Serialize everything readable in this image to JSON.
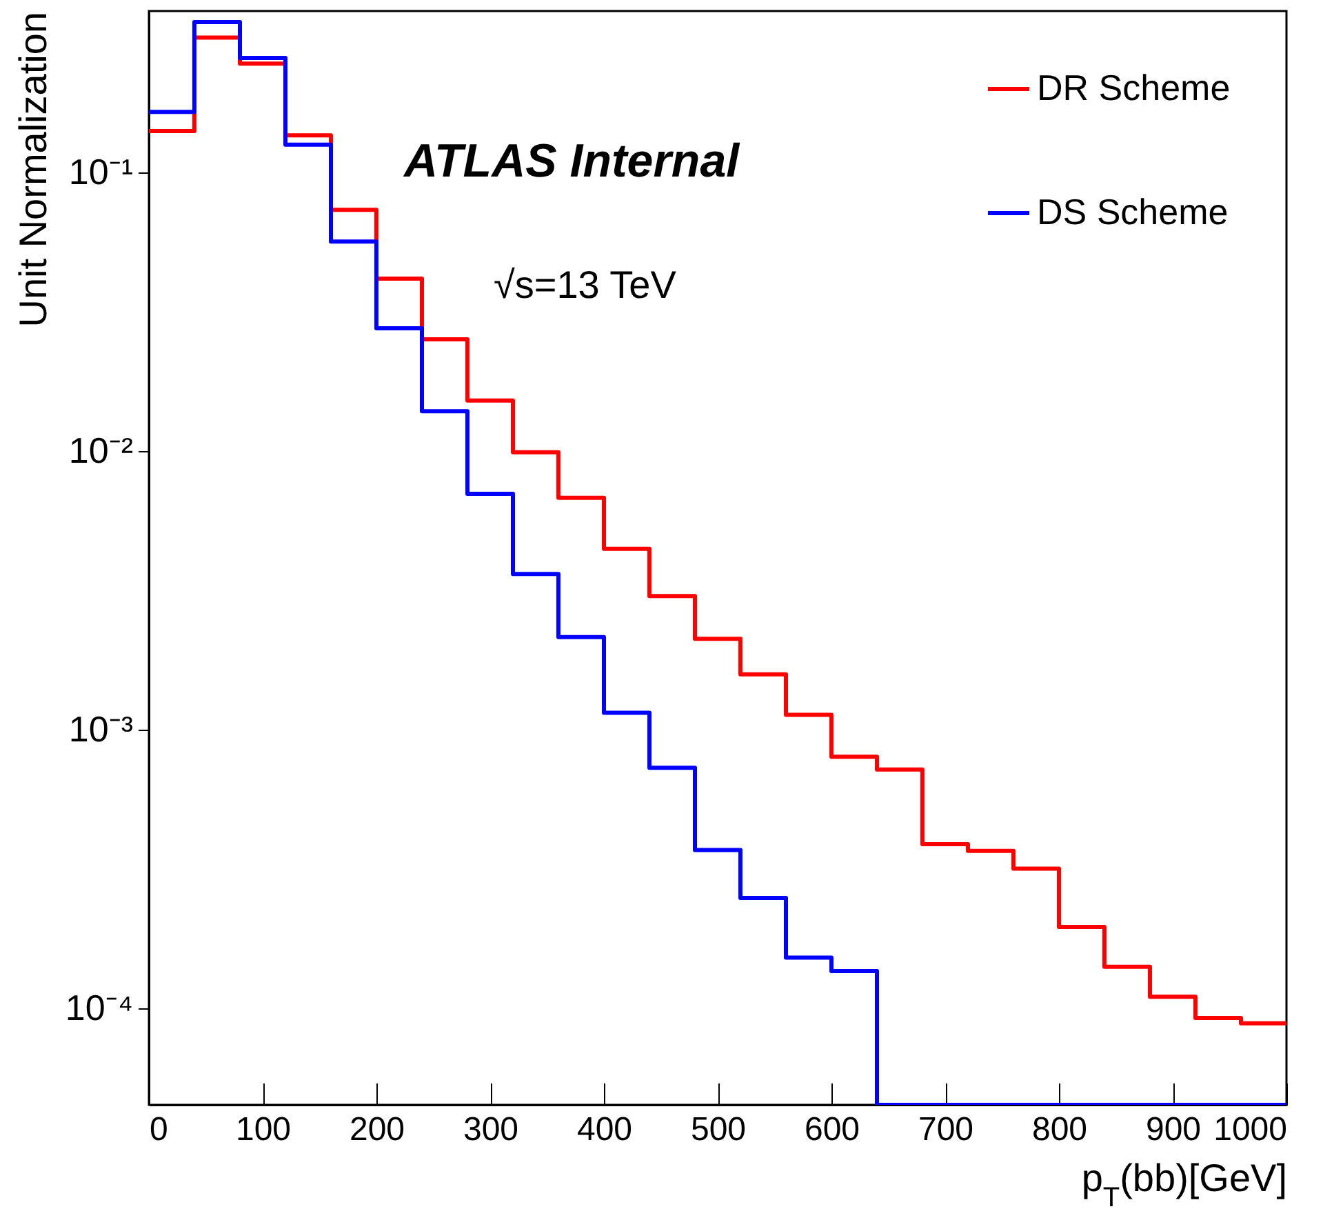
{
  "chart_data": {
    "type": "histogram",
    "xlabel": "p$_{T}$(bb)[GeV]",
    "ylabel": "Unit Normalization",
    "bins": [
      0,
      40,
      80,
      120,
      160,
      200,
      240,
      280,
      320,
      360,
      400,
      440,
      480,
      520,
      560,
      600,
      640,
      680,
      720,
      760,
      800,
      840,
      880,
      920,
      960,
      1000
    ],
    "series": [
      {
        "name": "DR Scheme",
        "color": "#ff0000",
        "values": [
          0.141,
          0.305,
          0.246,
          0.136,
          0.0735,
          0.0416,
          0.0252,
          0.0152,
          0.0099,
          0.0068,
          0.00446,
          0.00302,
          0.00212,
          0.00158,
          0.00113,
          0.0008,
          0.00072,
          0.000388,
          0.000367,
          0.000317,
          0.000196,
          0.000141,
          0.00011,
          9.23e-05,
          8.83e-05
        ]
      },
      {
        "name": "DS Scheme",
        "color": "#0000ff",
        "values": [
          0.165,
          0.347,
          0.258,
          0.126,
          0.0565,
          0.0276,
          0.0139,
          0.00703,
          0.00362,
          0.00215,
          0.00115,
          0.00073,
          0.00037,
          0.000249,
          0.000152,
          0.000136,
          null,
          null,
          null,
          null,
          null,
          null,
          null,
          null,
          null
        ]
      }
    ],
    "log": "y",
    "xlim": [
      0,
      1000
    ],
    "ylim": [
      4.5e-05,
      0.38
    ],
    "xticks": [
      0,
      100,
      200,
      300,
      400,
      500,
      600,
      700,
      800,
      900,
      1000
    ],
    "yticks": [
      {
        "value": 0.0001,
        "label": "10⁻⁴"
      },
      {
        "value": 0.001,
        "label": "10⁻³"
      },
      {
        "value": 0.01,
        "label": "10⁻²"
      },
      {
        "value": 0.1,
        "label": "10⁻¹"
      }
    ],
    "legend": "top right",
    "grid": false,
    "annotations": [
      "ATLAS Internal",
      "√s=13 TeV"
    ]
  }
}
